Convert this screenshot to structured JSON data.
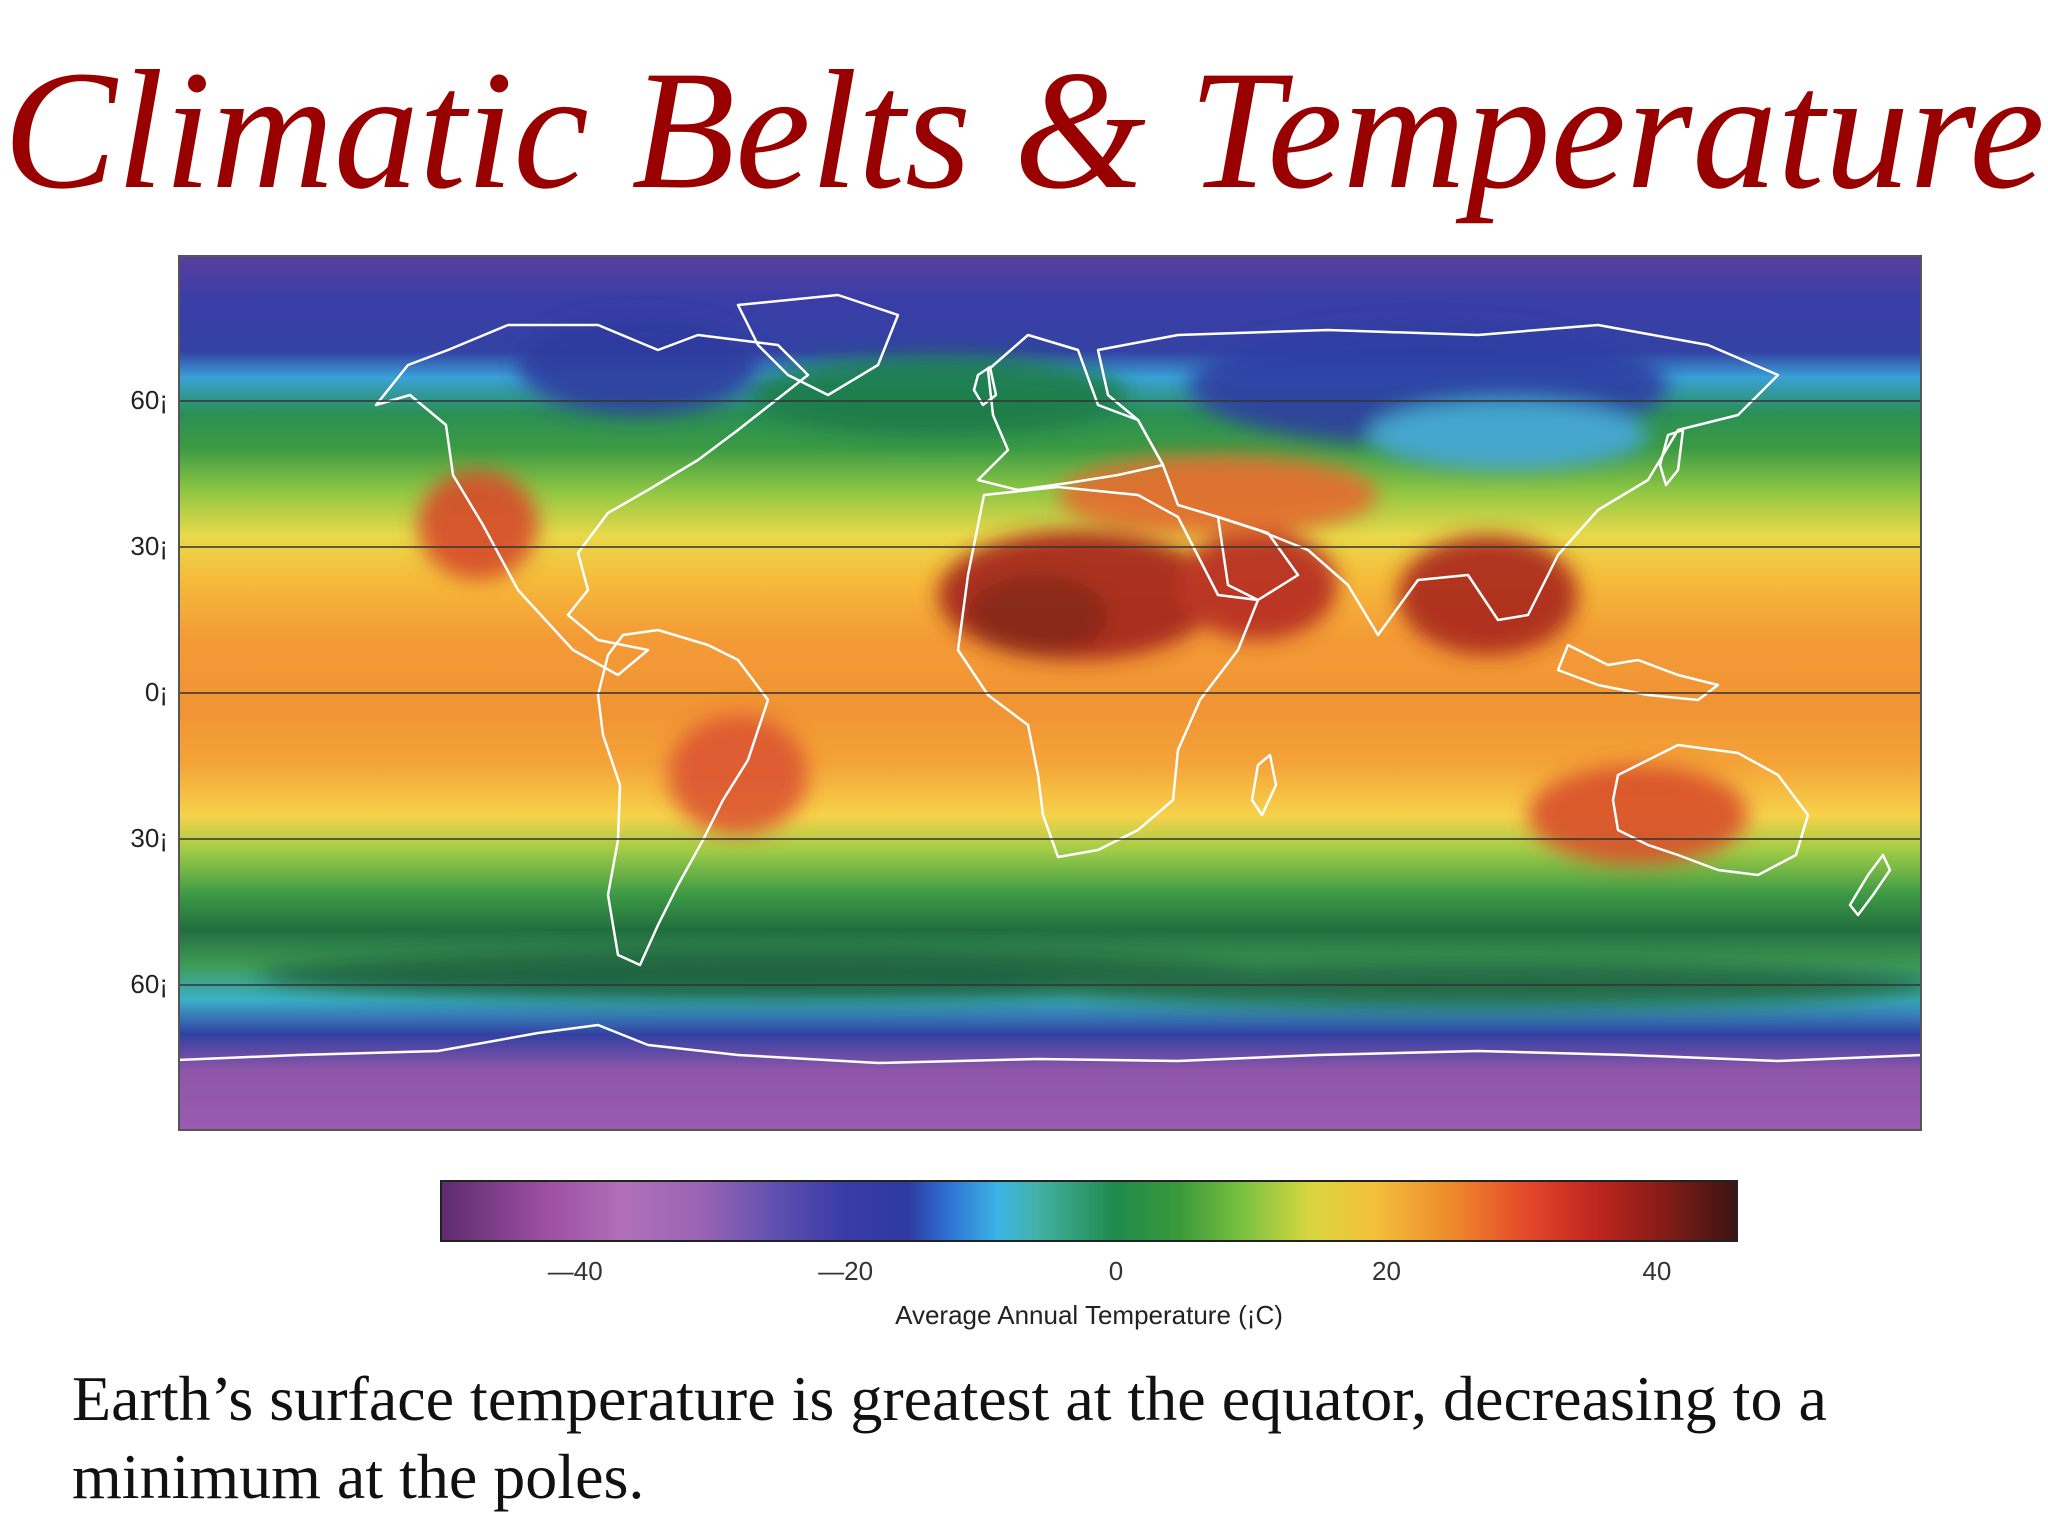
{
  "slide": {
    "title": "Climatic Belts & Temperature",
    "caption": "Earth’s surface temperature is greatest at the equator, decreasing to a minimum at the poles."
  },
  "map": {
    "latitude_labels": [
      {
        "lat": 60,
        "text": "60¡"
      },
      {
        "lat": 30,
        "text": "30¡"
      },
      {
        "lat": 0,
        "text": "0¡"
      },
      {
        "lat": -30,
        "text": "30¡"
      },
      {
        "lat": -60,
        "text": "60¡"
      }
    ],
    "colors": {
      "cold_purple": "#8f56a8",
      "blue": "#3542a3",
      "light_blue": "#3fa7dc",
      "dark_green": "#238a4b",
      "green": "#53ad43",
      "yellow": "#efd34a",
      "orange": "#f29a35",
      "red": "#d9402a",
      "dark_red": "#8f1f19",
      "coastline": "#ffffff"
    }
  },
  "colorbar": {
    "ticks": [
      {
        "value": -40,
        "label": "—40"
      },
      {
        "value": -20,
        "label": "—20"
      },
      {
        "value": 0,
        "label": "0"
      },
      {
        "value": 20,
        "label": "20"
      },
      {
        "value": 40,
        "label": "40"
      }
    ],
    "range": [
      -50,
      46
    ],
    "axis_title": "Average Annual Temperature (¡C)"
  }
}
